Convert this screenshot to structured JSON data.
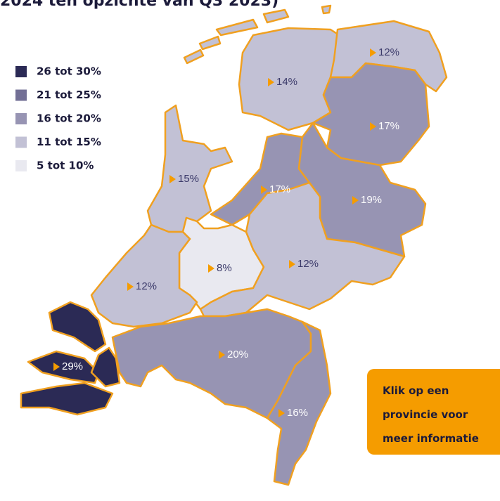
{
  "title": "2024 ten opzichte van Q3 2023)",
  "legend": [
    {
      "label": "26 tot 30%",
      "color": "#2b2a55"
    },
    {
      "label": "21 tot 25%",
      "color": "#726f95"
    },
    {
      "label": "16 tot 20%",
      "color": "#9794b3"
    },
    {
      "label": "11 tot 15%",
      "color": "#c2c1d5"
    },
    {
      "label": "5 tot 10%",
      "color": "#e9e9f0"
    }
  ],
  "regions": [
    {
      "value": 14,
      "label": "14%",
      "color": "#c2c1d5"
    },
    {
      "value": 12,
      "label": "12%",
      "color": "#c2c1d5"
    },
    {
      "value": 17,
      "label": "17%",
      "color": "#9794b3"
    },
    {
      "value": 15,
      "label": "15%",
      "color": "#c2c1d5"
    },
    {
      "value": 17,
      "label": "17%",
      "color": "#9794b3"
    },
    {
      "value": 19,
      "label": "19%",
      "color": "#9794b3"
    },
    {
      "value": 8,
      "label": "8%",
      "color": "#e9e9f0"
    },
    {
      "value": 12,
      "label": "12%",
      "color": "#c2c1d5"
    },
    {
      "value": 12,
      "label": "12%",
      "color": "#c2c1d5"
    },
    {
      "value": 20,
      "label": "20%",
      "color": "#9794b3"
    },
    {
      "value": 16,
      "label": "16%",
      "color": "#9794b3"
    },
    {
      "value": 29,
      "label": "29%",
      "color": "#2b2a55"
    }
  ],
  "button": {
    "lines": [
      "Klik op een",
      "provincie voor",
      "meer informatie"
    ]
  }
}
